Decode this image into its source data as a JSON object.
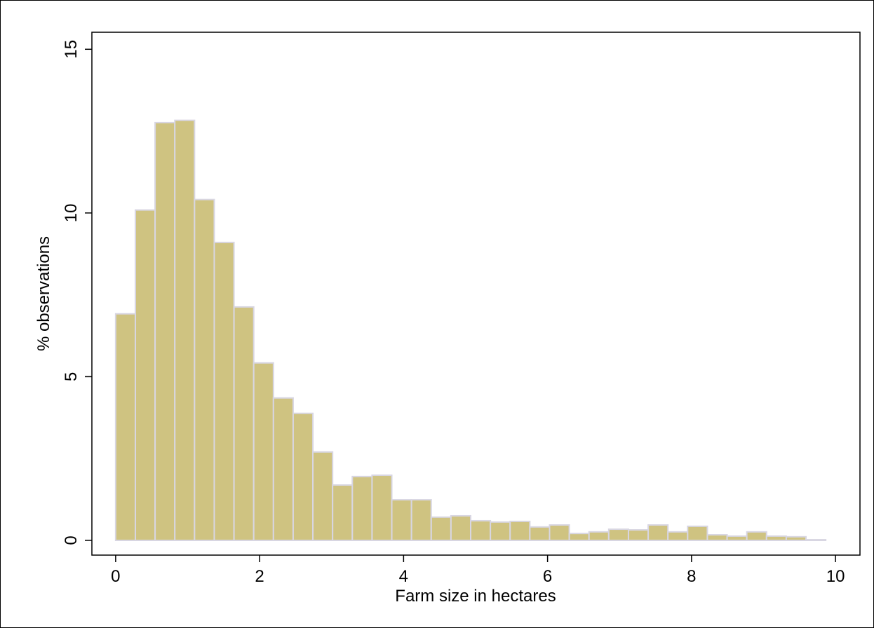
{
  "chart_data": {
    "type": "histogram",
    "x_label": "Farm size in hectares",
    "y_label": "% observations",
    "bins": [
      0,
      0.274,
      0.548,
      0.822,
      1.096,
      1.37,
      1.644,
      1.918,
      2.192,
      2.466,
      2.74,
      3.014,
      3.288,
      3.562,
      3.836,
      4.11,
      4.384,
      4.658,
      4.932,
      5.206,
      5.48,
      5.754,
      6.028,
      6.302,
      6.576,
      6.85,
      7.124,
      7.398,
      7.672,
      7.946,
      8.22,
      8.494,
      8.768,
      9.042,
      9.316,
      9.59,
      9.864
    ],
    "values": [
      6.92,
      10.09,
      12.76,
      12.83,
      10.41,
      9.1,
      7.13,
      5.42,
      4.35,
      3.88,
      2.7,
      1.69,
      1.95,
      1.99,
      1.24,
      1.24,
      0.71,
      0.75,
      0.6,
      0.56,
      0.58,
      0.41,
      0.47,
      0.21,
      0.26,
      0.34,
      0.32,
      0.47,
      0.26,
      0.43,
      0.17,
      0.13,
      0.26,
      0.13,
      0.11,
      0.02
    ],
    "color": "#cfc381",
    "xlim": [
      -0.33,
      10.34
    ],
    "ylim": [
      -0.45,
      15.52
    ],
    "xticks": [
      0,
      2,
      4,
      6,
      8,
      10
    ],
    "yticks": [
      0,
      5,
      10,
      15
    ]
  }
}
